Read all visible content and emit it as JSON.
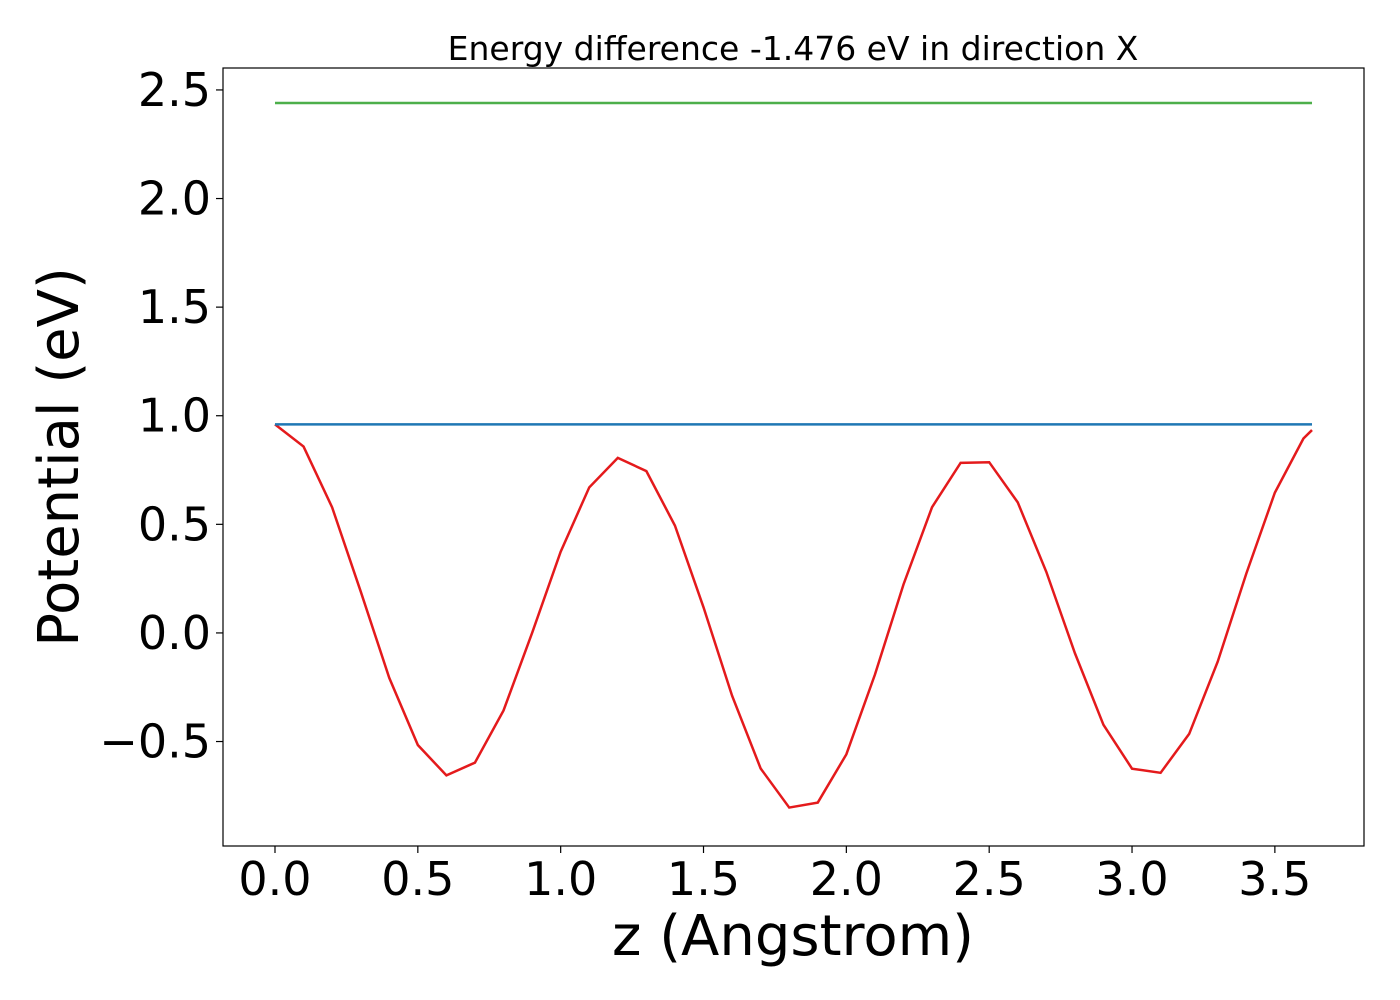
{
  "chart_data": {
    "type": "line",
    "title": "Energy difference -1.476 eV in direction X",
    "xlabel": "z (Angstrom)",
    "ylabel": "Potential (eV)",
    "xlim": [
      -0.182,
      3.812
    ],
    "ylim": [
      -0.981,
      2.601
    ],
    "xticks": [
      {
        "value": 0,
        "label": "0.0"
      },
      {
        "value": 0.5,
        "label": "0.5"
      },
      {
        "value": 1,
        "label": "1.0"
      },
      {
        "value": 1.5,
        "label": "1.5"
      },
      {
        "value": 2,
        "label": "2.0"
      },
      {
        "value": 2.5,
        "label": "2.5"
      },
      {
        "value": 3,
        "label": "3.0"
      },
      {
        "value": 3.5,
        "label": "3.5"
      }
    ],
    "yticks": [
      {
        "value": -0.5,
        "label": "−0.5"
      },
      {
        "value": 0,
        "label": "0.0"
      },
      {
        "value": 0.5,
        "label": "0.5"
      },
      {
        "value": 1,
        "label": "1.0"
      },
      {
        "value": 1.5,
        "label": "1.5"
      },
      {
        "value": 2,
        "label": "2.0"
      },
      {
        "value": 2.5,
        "label": "2.5"
      }
    ],
    "series": [
      {
        "color": "#e41a1c",
        "x": [
          0,
          0.1,
          0.2,
          0.3,
          0.4,
          0.5,
          0.6,
          0.7,
          0.8,
          0.9,
          1.0,
          1.1,
          1.2,
          1.3,
          1.4,
          1.5,
          1.6,
          1.7,
          1.8,
          1.9,
          2.0,
          2.1,
          2.2,
          2.3,
          2.4,
          2.5,
          2.6,
          2.7,
          2.8,
          2.9,
          3.0,
          3.1,
          3.2,
          3.3,
          3.4,
          3.5,
          3.6,
          3.63
        ],
        "values": [
          0.96,
          0.858,
          0.578,
          0.191,
          -0.207,
          -0.516,
          -0.656,
          -0.597,
          -0.357,
          0.0,
          0.374,
          0.67,
          0.806,
          0.745,
          0.494,
          0.118,
          -0.289,
          -0.624,
          -0.804,
          -0.781,
          -0.559,
          -0.192,
          0.223,
          0.579,
          0.783,
          0.786,
          0.601,
          0.281,
          -0.093,
          -0.423,
          -0.625,
          -0.644,
          -0.465,
          -0.132,
          0.273,
          0.646,
          0.895,
          0.934
        ]
      },
      {
        "color": "#1f77b4",
        "x": [
          0,
          3.63
        ],
        "values": [
          0.96,
          0.96
        ]
      },
      {
        "color": "#4daf4a",
        "x": [
          0,
          3.63
        ],
        "values": [
          2.44,
          2.44
        ]
      }
    ]
  }
}
